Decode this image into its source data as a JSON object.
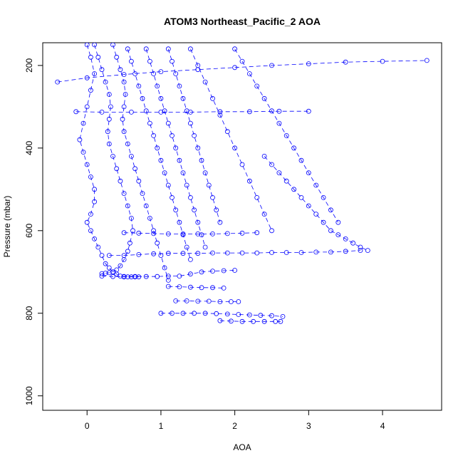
{
  "chart_data": {
    "type": "scatter",
    "title": "ATOM3 Northeast_Pacific_2 AOA",
    "xlabel": "AOA",
    "ylabel": "Pressure (mbar)",
    "xlim": [
      -0.6,
      4.8
    ],
    "ylim": [
      1035,
      145
    ],
    "y_reversed": true,
    "x_ticks": [
      0,
      1,
      2,
      3,
      4
    ],
    "x_tick_labels": [
      "0",
      "1",
      "2",
      "3",
      "4"
    ],
    "y_ticks": [
      200,
      400,
      600,
      800,
      1000
    ],
    "y_tick_labels": [
      "200",
      "400",
      "600",
      "800",
      "1000"
    ],
    "marker": "open-circle",
    "line_style": "dashed",
    "grid": false,
    "legend": "none",
    "colors": {
      "series": "#0000ff",
      "axes": "#000000",
      "background": "#ffffff"
    },
    "series": [
      {
        "x": [
          0.0,
          0.05,
          0.1,
          0.05,
          0.0,
          -0.05,
          -0.1,
          -0.05,
          0.0,
          0.05,
          0.1,
          0.1,
          0.05,
          0.0,
          0.05,
          0.1,
          0.15,
          0.2,
          0.25,
          0.3,
          0.35,
          0.4,
          0.45,
          0.5,
          0.55,
          0.6,
          0.65,
          0.7
        ],
        "y": [
          150,
          180,
          220,
          260,
          300,
          340,
          380,
          410,
          440,
          470,
          500,
          530,
          560,
          580,
          600,
          620,
          640,
          660,
          680,
          690,
          700,
          705,
          710,
          712,
          712,
          712,
          712,
          712
        ]
      },
      {
        "x": [
          0.1,
          0.15,
          0.2,
          0.25,
          0.3,
          0.32,
          0.3,
          0.28,
          0.3,
          0.35,
          0.4,
          0.45,
          0.5,
          0.55,
          0.6,
          0.62,
          0.58,
          0.55,
          0.5,
          0.45,
          0.4,
          0.35,
          0.3,
          0.25,
          0.2
        ],
        "y": [
          150,
          180,
          210,
          240,
          270,
          300,
          330,
          360,
          390,
          420,
          450,
          480,
          510,
          540,
          570,
          600,
          630,
          650,
          670,
          685,
          695,
          700,
          702,
          703,
          704
        ]
      },
      {
        "x": [
          0.35,
          0.4,
          0.45,
          0.5,
          0.52,
          0.5,
          0.48,
          0.5,
          0.55,
          0.6,
          0.65,
          0.7,
          0.75,
          0.8,
          0.85,
          0.9,
          0.95,
          1.0,
          1.05,
          1.1
        ],
        "y": [
          150,
          180,
          210,
          240,
          270,
          300,
          330,
          360,
          390,
          420,
          450,
          480,
          510,
          540,
          570,
          600,
          630,
          660,
          690,
          720
        ]
      },
      {
        "x": [
          0.55,
          0.6,
          0.65,
          0.7,
          0.75,
          0.8,
          0.85,
          0.9,
          0.95,
          1.0,
          1.05,
          1.1,
          1.15,
          1.2,
          1.25,
          1.3,
          1.35,
          1.4
        ],
        "y": [
          160,
          190,
          220,
          250,
          280,
          310,
          340,
          370,
          400,
          430,
          460,
          490,
          520,
          550,
          580,
          610,
          640,
          670
        ]
      },
      {
        "x": [
          0.8,
          0.85,
          0.9,
          0.95,
          1.0,
          1.05,
          1.1,
          1.15,
          1.2,
          1.25,
          1.3,
          1.35,
          1.4,
          1.45,
          1.5,
          1.55,
          1.6
        ],
        "y": [
          160,
          190,
          220,
          250,
          280,
          310,
          340,
          370,
          400,
          430,
          460,
          490,
          520,
          550,
          580,
          610,
          640
        ]
      },
      {
        "x": [
          1.1,
          1.15,
          1.2,
          1.25,
          1.3,
          1.35,
          1.4,
          1.45,
          1.5,
          1.55,
          1.6,
          1.65,
          1.7,
          1.75,
          1.8
        ],
        "y": [
          160,
          190,
          220,
          250,
          280,
          310,
          340,
          370,
          400,
          430,
          460,
          490,
          520,
          550,
          580
        ]
      },
      {
        "x": [
          1.4,
          1.5,
          1.6,
          1.7,
          1.8,
          1.9,
          2.0,
          2.1,
          2.2,
          2.3,
          2.4,
          2.5
        ],
        "y": [
          160,
          200,
          240,
          280,
          320,
          360,
          400,
          440,
          480,
          520,
          560,
          600
        ]
      },
      {
        "x": [
          2.0,
          2.1,
          2.2,
          2.3,
          2.4,
          2.5,
          2.6,
          2.7,
          2.8,
          2.9,
          3.0,
          3.1,
          3.2,
          3.3,
          3.4
        ],
        "y": [
          160,
          190,
          220,
          250,
          280,
          310,
          340,
          370,
          400,
          430,
          460,
          490,
          520,
          550,
          580
        ]
      },
      {
        "x": [
          2.4,
          2.5,
          2.6,
          2.7,
          2.8,
          2.9,
          3.0,
          3.1,
          3.2,
          3.3,
          3.4,
          3.5,
          3.6,
          3.7,
          3.8
        ],
        "y": [
          420,
          440,
          460,
          480,
          500,
          520,
          540,
          560,
          580,
          600,
          610,
          620,
          630,
          640,
          648
        ]
      },
      {
        "x": [
          -0.4,
          0.0,
          0.5,
          1.0,
          1.5,
          2.0,
          2.5,
          3.0,
          3.5,
          4.0,
          4.6
        ],
        "y": [
          240,
          230,
          222,
          215,
          210,
          205,
          200,
          196,
          192,
          190,
          188
        ]
      },
      {
        "x": [
          -0.15,
          0.2,
          0.6,
          1.0,
          1.4,
          1.8,
          2.2,
          2.6,
          3.0
        ],
        "y": [
          312,
          313,
          313,
          313,
          313,
          312,
          312,
          311,
          311
        ]
      },
      {
        "x": [
          0.3,
          0.5,
          0.7,
          0.9,
          1.1,
          1.3,
          1.5,
          1.7,
          1.9,
          2.1,
          2.3,
          2.5,
          2.7,
          2.9,
          3.1,
          3.3,
          3.5,
          3.7
        ],
        "y": [
          660,
          660,
          658,
          656,
          655,
          655,
          655,
          654,
          654,
          654,
          654,
          653,
          653,
          653,
          652,
          652,
          650,
          648
        ]
      },
      {
        "x": [
          0.2,
          0.35,
          0.5,
          0.65,
          0.8,
          0.95,
          1.1,
          1.25,
          1.4,
          1.55,
          1.7,
          1.85,
          2.0
        ],
        "y": [
          710,
          711,
          711,
          711,
          711,
          711,
          710,
          710,
          705,
          700,
          698,
          697,
          696
        ]
      },
      {
        "x": [
          1.0,
          1.15,
          1.3,
          1.45,
          1.6,
          1.75,
          1.9,
          2.05,
          2.2,
          2.35,
          2.5,
          2.65
        ],
        "y": [
          800,
          800,
          800,
          800,
          800,
          801,
          802,
          803,
          804,
          805,
          806,
          808
        ]
      },
      {
        "x": [
          1.8,
          1.95,
          2.1,
          2.25,
          2.4,
          2.55,
          2.62
        ],
        "y": [
          818,
          819,
          820,
          820,
          820,
          820,
          820
        ]
      },
      {
        "x": [
          1.2,
          1.35,
          1.5,
          1.65,
          1.8,
          1.95,
          2.05
        ],
        "y": [
          770,
          770,
          771,
          771,
          772,
          772,
          772
        ]
      },
      {
        "x": [
          1.1,
          1.25,
          1.4,
          1.55,
          1.7,
          1.85
        ],
        "y": [
          735,
          736,
          737,
          738,
          738,
          739
        ]
      },
      {
        "x": [
          0.5,
          0.7,
          0.9,
          1.1,
          1.3,
          1.5,
          1.7,
          1.9,
          2.1,
          2.3
        ],
        "y": [
          605,
          606,
          607,
          608,
          608,
          608,
          608,
          607,
          606,
          605
        ]
      }
    ]
  }
}
